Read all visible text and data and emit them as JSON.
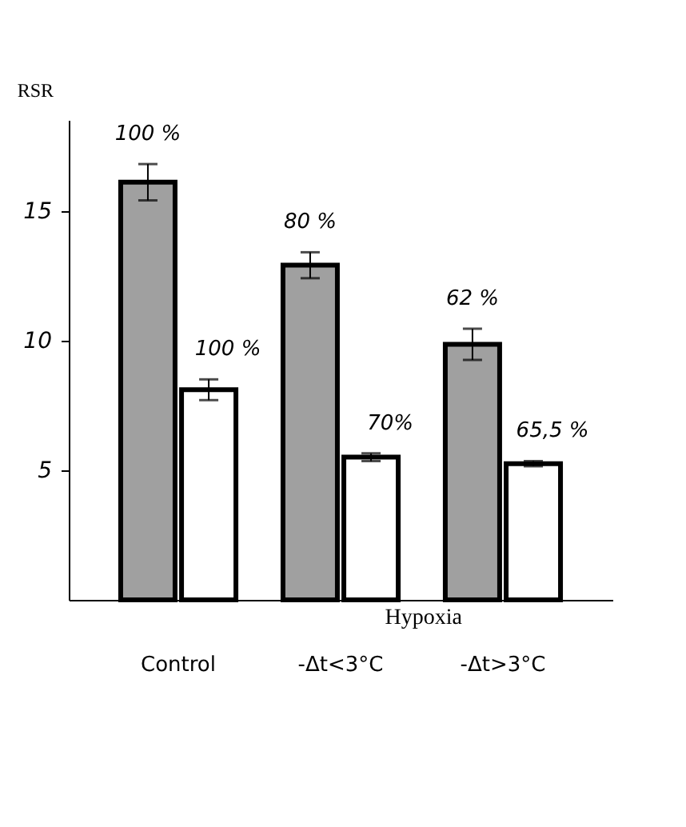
{
  "chart_data": {
    "type": "bar",
    "ylabel": "RSR",
    "categories": [
      "Control",
      "-Δt<3°C",
      "-Δt>3°C"
    ],
    "series": [
      {
        "color": "#a0a0a0",
        "values": [
          16.1,
          12.9,
          9.85
        ],
        "errors": [
          0.7,
          0.5,
          0.6
        ]
      },
      {
        "color": "#ffffff",
        "values": [
          8.1,
          5.5,
          5.25
        ],
        "errors": [
          0.4,
          0.15,
          0.1
        ]
      }
    ],
    "annotations": [
      {
        "text": "100 %",
        "x": "Control",
        "y": 16.1
      },
      {
        "text": "80 %",
        "x": "-Δt<3°C",
        "y": 12.9
      },
      {
        "text": "62 %",
        "x": "-Δt>3°C",
        "y": 9.85
      },
      {
        "text": "100 %",
        "x": "Control",
        "y": 8.1
      },
      {
        "text": "70%",
        "x": "-Δt<3°C",
        "y": 5.5
      },
      {
        "text": "65,5 %",
        "x": "-Δt>3°C",
        "y": 5.25
      },
      "Hypoxia"
    ],
    "ylim": [
      0,
      18.5
    ],
    "yticks": [
      5,
      10,
      15
    ],
    "grid": false
  }
}
